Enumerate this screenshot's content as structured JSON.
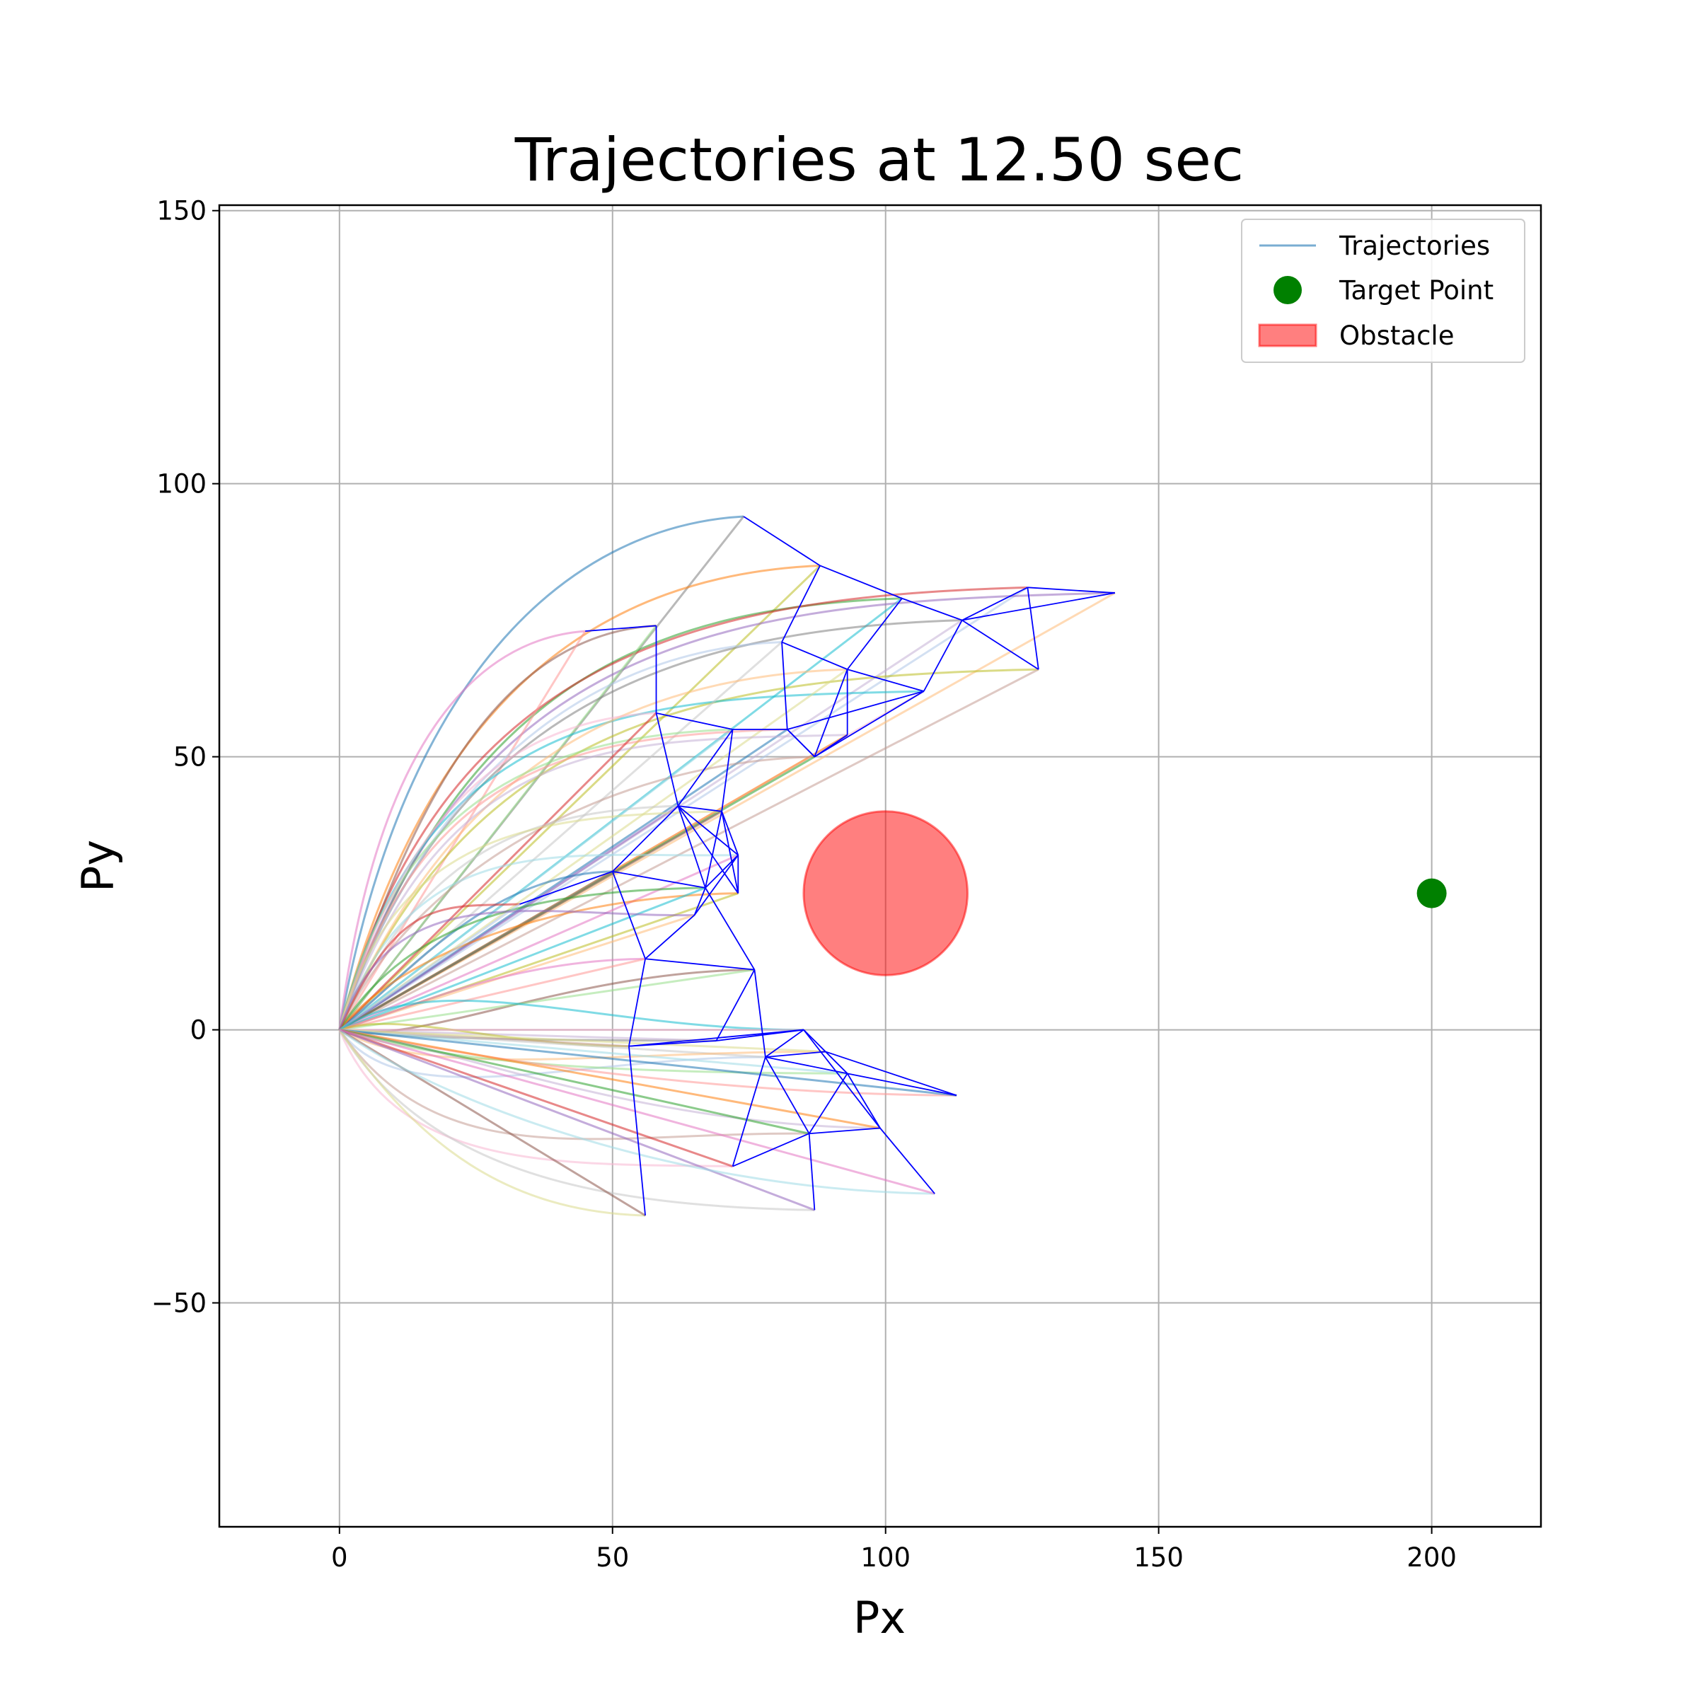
{
  "chart_data": {
    "type": "line",
    "title": "Trajectories at 12.50 sec",
    "xlabel": "Px",
    "ylabel": "Py",
    "xlim": [
      -22,
      220
    ],
    "ylim": [
      -91,
      151
    ],
    "xticks": [
      0,
      50,
      100,
      150,
      200
    ],
    "yticks": [
      -50,
      0,
      50,
      100,
      150
    ],
    "tick_labels_x": [
      "0",
      "50",
      "100",
      "150",
      "200"
    ],
    "tick_labels_y": [
      "−50",
      "0",
      "50",
      "100",
      "150"
    ],
    "grid": true,
    "legend_position": "top-right",
    "legend": {
      "trajectories": "Trajectories",
      "target": "Target Point",
      "obstacle": "Obstacle"
    },
    "obstacle": {
      "center": [
        100,
        25
      ],
      "radius": 15,
      "color": "#ff0000",
      "alpha": 0.5
    },
    "target": {
      "x": 200,
      "y": 25,
      "color": "#008000"
    },
    "agent_positions": [
      [
        74,
        94
      ],
      [
        88,
        85
      ],
      [
        103,
        79
      ],
      [
        126,
        81
      ],
      [
        142,
        80
      ],
      [
        58,
        74
      ],
      [
        45,
        73
      ],
      [
        114,
        75
      ],
      [
        128,
        66
      ],
      [
        107,
        62
      ],
      [
        81,
        71
      ],
      [
        93,
        66
      ],
      [
        72,
        55
      ],
      [
        82,
        55
      ],
      [
        93,
        54
      ],
      [
        87,
        50
      ],
      [
        58,
        58
      ],
      [
        62,
        41
      ],
      [
        70,
        40
      ],
      [
        73,
        32
      ],
      [
        50,
        29
      ],
      [
        73,
        25
      ],
      [
        67,
        26
      ],
      [
        33,
        23
      ],
      [
        65,
        21
      ],
      [
        76,
        11
      ],
      [
        56,
        13
      ],
      [
        69,
        -2
      ],
      [
        53,
        -3
      ],
      [
        85,
        0
      ],
      [
        78,
        -5
      ],
      [
        89,
        -4
      ],
      [
        93,
        -8
      ],
      [
        113,
        -12
      ],
      [
        99,
        -18
      ],
      [
        86,
        -19
      ],
      [
        72,
        -25
      ],
      [
        87,
        -33
      ],
      [
        56,
        -34
      ],
      [
        109,
        -30
      ]
    ],
    "network_edges": [
      [
        0,
        1
      ],
      [
        1,
        2
      ],
      [
        2,
        7
      ],
      [
        7,
        3
      ],
      [
        3,
        8
      ],
      [
        7,
        8
      ],
      [
        3,
        4
      ],
      [
        4,
        7
      ],
      [
        7,
        9
      ],
      [
        9,
        11
      ],
      [
        9,
        13
      ],
      [
        9,
        15
      ],
      [
        2,
        11
      ],
      [
        1,
        10
      ],
      [
        10,
        13
      ],
      [
        10,
        11
      ],
      [
        11,
        14
      ],
      [
        11,
        15
      ],
      [
        14,
        15
      ],
      [
        13,
        15
      ],
      [
        6,
        5
      ],
      [
        5,
        16
      ],
      [
        16,
        12
      ],
      [
        16,
        17
      ],
      [
        12,
        13
      ],
      [
        12,
        17
      ],
      [
        12,
        18
      ],
      [
        13,
        15
      ],
      [
        17,
        18
      ],
      [
        17,
        19
      ],
      [
        17,
        21
      ],
      [
        17,
        22
      ],
      [
        18,
        19
      ],
      [
        18,
        21
      ],
      [
        18,
        22
      ],
      [
        19,
        22
      ],
      [
        19,
        24
      ],
      [
        20,
        23
      ],
      [
        20,
        22
      ],
      [
        20,
        26
      ],
      [
        20,
        17
      ],
      [
        22,
        24
      ],
      [
        22,
        25
      ],
      [
        24,
        26
      ],
      [
        26,
        25
      ],
      [
        25,
        27
      ],
      [
        25,
        30
      ],
      [
        26,
        28
      ],
      [
        27,
        28
      ],
      [
        28,
        29
      ],
      [
        27,
        29
      ],
      [
        28,
        38
      ],
      [
        29,
        30
      ],
      [
        29,
        31
      ],
      [
        30,
        31
      ],
      [
        30,
        32
      ],
      [
        31,
        32
      ],
      [
        31,
        33
      ],
      [
        32,
        33
      ],
      [
        32,
        34
      ],
      [
        29,
        34
      ],
      [
        34,
        39
      ],
      [
        34,
        35
      ],
      [
        35,
        32
      ],
      [
        35,
        36
      ],
      [
        36,
        30
      ],
      [
        35,
        37
      ],
      [
        30,
        35
      ],
      [
        19,
        21
      ]
    ],
    "trajectory_colors": [
      "#1f77b4",
      "#ff7f0e",
      "#2ca02c",
      "#d62728",
      "#9467bd",
      "#8c564b",
      "#e377c2",
      "#7f7f7f",
      "#bcbd22",
      "#17becf",
      "#aec7e8",
      "#ffbb78",
      "#98df8a",
      "#ff9896",
      "#c5b0d5",
      "#c49c94",
      "#f7b6d2",
      "#c7c7c7",
      "#dbdb8d",
      "#9edae5"
    ]
  }
}
